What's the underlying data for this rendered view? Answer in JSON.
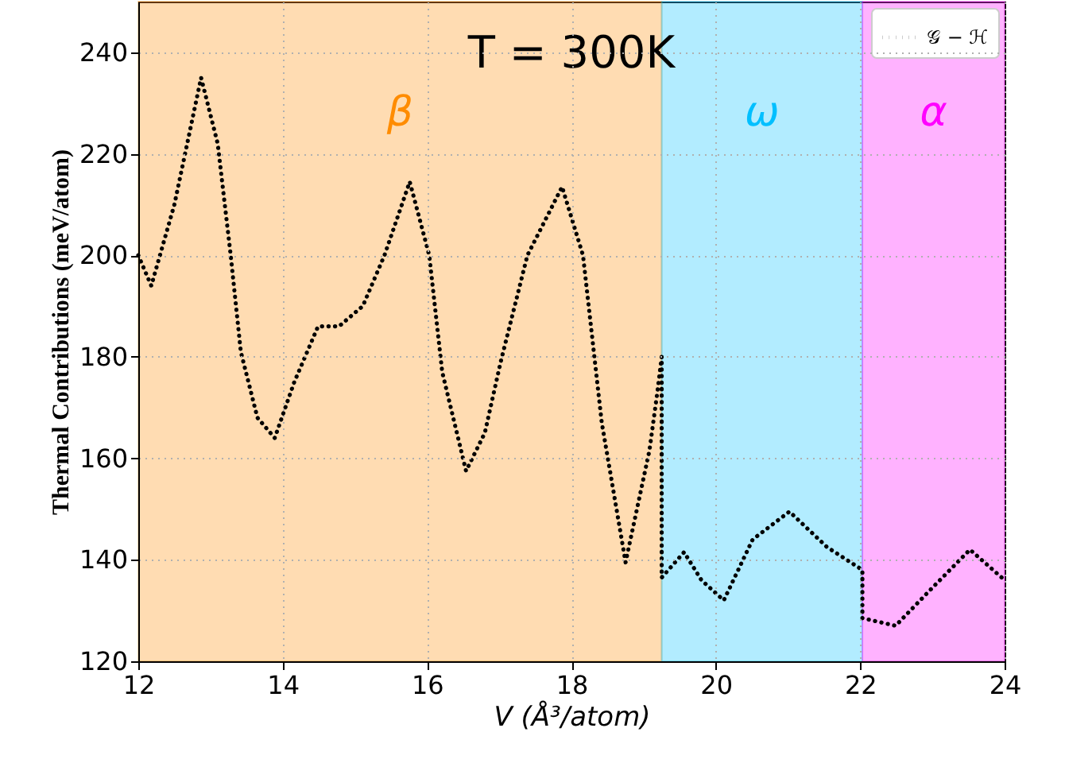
{
  "chart_data": {
    "type": "line",
    "title": "T = 300K",
    "xlabel": "V (Å³/atom)",
    "ylabel": "Thermal Contributions (meV/atom)",
    "series": [
      {
        "name": "𝒢 − ℋ",
        "color": "#000000",
        "x": [
          12,
          12.18,
          12.5,
          12.87,
          13.1,
          13.28,
          13.42,
          13.65,
          13.89,
          14.16,
          14.49,
          14.78,
          15.11,
          15.41,
          15.76,
          16.03,
          16.21,
          16.54,
          16.8,
          17.02,
          17.39,
          17.87,
          18.16,
          18.42,
          18.75,
          19.08,
          19.19,
          19.25,
          19.25,
          19.56,
          19.8,
          20.11,
          20.51,
          21.02,
          21.54,
          22.03,
          22.03,
          22.49,
          23.0,
          23.52,
          24
        ],
        "values": [
          200,
          194,
          210,
          235,
          222,
          200,
          181,
          168,
          164,
          175,
          186,
          186,
          190,
          200,
          214.5,
          200,
          177,
          157.5,
          165,
          179,
          200,
          213.5,
          200,
          167,
          139.5,
          161.5,
          173,
          180,
          136.5,
          141.5,
          136,
          132,
          144,
          149.5,
          142.5,
          138,
          128.5,
          127,
          134.5,
          142,
          136
        ]
      }
    ],
    "bands": [
      {
        "axis": "x",
        "from": 12,
        "to": 19.25,
        "label": "β",
        "color": "#ff8c00"
      },
      {
        "axis": "x",
        "from": 19.25,
        "to": 22.03,
        "label": "ω",
        "color": "#00bfff"
      },
      {
        "axis": "x",
        "from": 22.03,
        "to": 24,
        "label": "α",
        "color": "#ff00ff"
      }
    ],
    "xlim": [
      12,
      24
    ],
    "ylim": [
      120,
      250
    ],
    "xticks": [
      12,
      14,
      16,
      18,
      20,
      22,
      24
    ],
    "yticks": [
      120,
      140,
      160,
      180,
      200,
      220,
      240
    ],
    "grid": true,
    "legend": "top right",
    "line_style": "dotted",
    "marker": "none"
  }
}
